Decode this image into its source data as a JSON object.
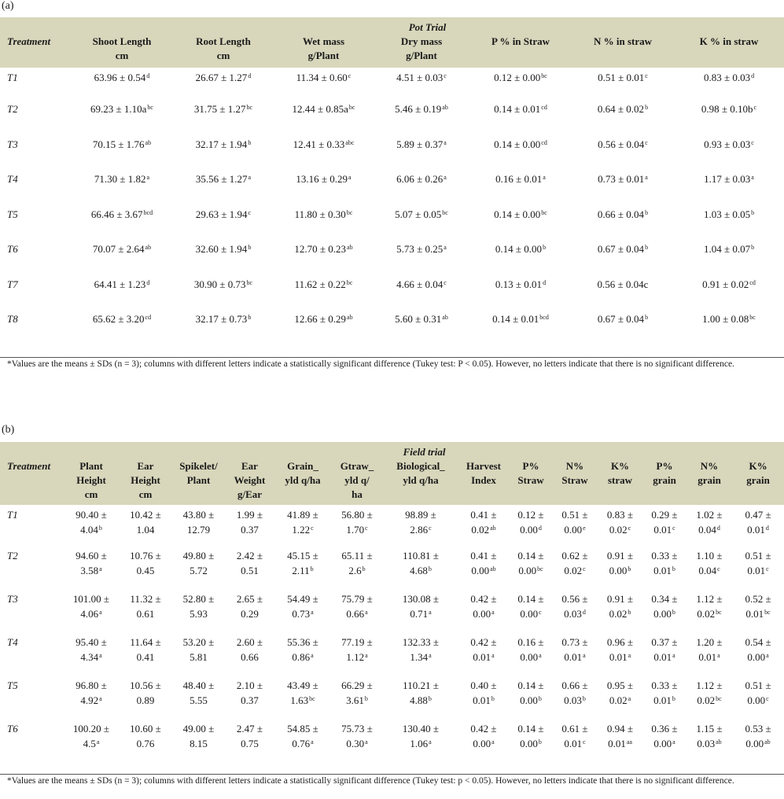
{
  "table_a": {
    "panel_label": "(a)",
    "title": "Pot Trial",
    "headers": [
      {
        "l1": "Treatment",
        "l2": ""
      },
      {
        "l1": "Shoot Length",
        "l2": "cm"
      },
      {
        "l1": "Root Length",
        "l2": "cm"
      },
      {
        "l1": "Wet mass",
        "l2": "g/Plant"
      },
      {
        "l1": "Dry mass",
        "l2": "g/Plant"
      },
      {
        "l1": "P % in Straw",
        "l2": ""
      },
      {
        "l1": "N % in straw",
        "l2": ""
      },
      {
        "l1": "K % in straw",
        "l2": ""
      }
    ],
    "rows": [
      {
        "treatment": "T1",
        "cells": [
          {
            "v": "63.96 ± 0.54",
            "s": "d"
          },
          {
            "v": "26.67 ± 1.27",
            "s": "d"
          },
          {
            "v": "11.34 ± 0.60",
            "s": "c"
          },
          {
            "v": "4.51 ± 0.03",
            "s": "c"
          },
          {
            "v": "0.12 ± 0.00",
            "s": "bc"
          },
          {
            "v": "0.51 ± 0.01",
            "s": "c"
          },
          {
            "v": "0.83 ± 0.03",
            "s": "d"
          }
        ]
      },
      {
        "treatment": "T2",
        "cells": [
          {
            "v": "69.23 ± 1.10a",
            "s": "bc"
          },
          {
            "v": "31.75 ± 1.27",
            "s": "bc"
          },
          {
            "v": "12.44 ± 0.85a",
            "s": "bc"
          },
          {
            "v": "5.46 ± 0.19",
            "s": "ab"
          },
          {
            "v": "0.14 ± 0.01",
            "s": "cd"
          },
          {
            "v": "0.64 ± 0.02",
            "s": "b"
          },
          {
            "v": "0.98 ± 0.10b",
            "s": "c"
          }
        ]
      },
      {
        "treatment": "T3",
        "cells": [
          {
            "v": "70.15 ± 1.76",
            "s": "ab"
          },
          {
            "v": "32.17 ± 1.94",
            "s": "b"
          },
          {
            "v": "12.41 ± 0.33",
            "s": "abc"
          },
          {
            "v": "5.89 ± 0.37",
            "s": "a"
          },
          {
            "v": "0.14 ± 0.00",
            "s": "cd"
          },
          {
            "v": "0.56 ± 0.04",
            "s": "c"
          },
          {
            "v": "0.93 ± 0.03",
            "s": "c"
          }
        ]
      },
      {
        "treatment": "T4",
        "cells": [
          {
            "v": "71.30 ± 1.82",
            "s": "a"
          },
          {
            "v": "35.56 ± 1.27",
            "s": "a"
          },
          {
            "v": "13.16 ± 0.29",
            "s": "a"
          },
          {
            "v": "6.06 ± 0.26",
            "s": "a"
          },
          {
            "v": "0.16 ± 0.01",
            "s": "a"
          },
          {
            "v": "0.73 ± 0.01",
            "s": "a"
          },
          {
            "v": "1.17 ± 0.03",
            "s": "a"
          }
        ]
      },
      {
        "treatment": "T5",
        "cells": [
          {
            "v": "66.46 ± 3.67",
            "s": "bcd"
          },
          {
            "v": "29.63 ± 1.94",
            "s": "c"
          },
          {
            "v": "11.80 ± 0.30",
            "s": "bc"
          },
          {
            "v": "5.07 ± 0.05",
            "s": "bc"
          },
          {
            "v": "0.14 ± 0.00",
            "s": "bc"
          },
          {
            "v": "0.66 ± 0.04",
            "s": "b"
          },
          {
            "v": "1.03 ± 0.05",
            "s": "b"
          }
        ]
      },
      {
        "treatment": "T6",
        "cells": [
          {
            "v": "70.07 ± 2.64",
            "s": "ab"
          },
          {
            "v": "32.60 ± 1.94",
            "s": "b"
          },
          {
            "v": "12.70 ± 0.23",
            "s": "ab"
          },
          {
            "v": "5.73 ± 0.25",
            "s": "a"
          },
          {
            "v": "0.14 ± 0.00",
            "s": "b"
          },
          {
            "v": "0.67 ± 0.04",
            "s": "b"
          },
          {
            "v": "1.04 ± 0.07",
            "s": "b"
          }
        ]
      },
      {
        "treatment": "T7",
        "cells": [
          {
            "v": "64.41 ± 1.23",
            "s": "d"
          },
          {
            "v": "30.90 ± 0.73",
            "s": "bc"
          },
          {
            "v": "11.62 ± 0.22",
            "s": "bc"
          },
          {
            "v": "4.66 ± 0.04",
            "s": "c"
          },
          {
            "v": "0.13 ± 0.01",
            "s": "d"
          },
          {
            "v": "0.56 ± 0.04c",
            "s": ""
          },
          {
            "v": "0.91 ± 0.02",
            "s": "cd"
          }
        ]
      },
      {
        "treatment": "T8",
        "cells": [
          {
            "v": "65.62 ± 3.20",
            "s": "cd"
          },
          {
            "v": "32.17 ± 0.73",
            "s": "b"
          },
          {
            "v": "12.66 ± 0.29",
            "s": "ab"
          },
          {
            "v": "5.60 ± 0.31",
            "s": "ab"
          },
          {
            "v": "0.14 ± 0.01",
            "s": "bcd"
          },
          {
            "v": "0.67 ± 0.04",
            "s": "b"
          },
          {
            "v": "1.00 ± 0.08",
            "s": "bc"
          }
        ]
      }
    ],
    "note": "*Values are the means ± SDs (n = 3); columns with different letters indicate a statistically significant difference (Tukey test: P < 0.05). However, no letters indicate that there is no significant difference."
  },
  "table_b": {
    "panel_label": "(b)",
    "title": "Field trial",
    "headers": [
      [
        "Treatment"
      ],
      [
        "Plant",
        "Height",
        "cm"
      ],
      [
        "Ear",
        "Height",
        "cm"
      ],
      [
        "Spikelet/",
        "Plant"
      ],
      [
        "Ear",
        "Weight",
        "g/Ear"
      ],
      [
        "Grain_",
        "yld q/ha"
      ],
      [
        "Gtraw_",
        "yld q/",
        "ha"
      ],
      [
        "Biological_",
        "yld q/ha"
      ],
      [
        "Harvest",
        "Index"
      ],
      [
        "P%",
        "Straw"
      ],
      [
        "N%",
        "Straw"
      ],
      [
        "K%",
        "straw"
      ],
      [
        "P%",
        "grain"
      ],
      [
        "N%",
        "grain"
      ],
      [
        "K%",
        "grain"
      ]
    ],
    "rows": [
      {
        "treatment": "T1",
        "cells": [
          [
            "90.40 ±",
            "4.04",
            "b"
          ],
          [
            "10.42 ±",
            "1.04",
            ""
          ],
          [
            "43.80 ±",
            "12.79",
            ""
          ],
          [
            "1.99 ±",
            "0.37",
            ""
          ],
          [
            "41.89 ±",
            "1.22",
            "c"
          ],
          [
            "56.80 ±",
            "1.70",
            "c"
          ],
          [
            "98.89 ±",
            "2.86",
            "c"
          ],
          [
            "0.41 ±",
            "0.02",
            "ab"
          ],
          [
            "0.12 ±",
            "0.00",
            "d"
          ],
          [
            "0.51 ±",
            "0.00",
            "e"
          ],
          [
            "0.83 ±",
            "0.02",
            "c"
          ],
          [
            "0.29 ±",
            "0.01",
            "c"
          ],
          [
            "1.02 ±",
            "0.04",
            "d"
          ],
          [
            "0.47 ±",
            "0.01",
            "d"
          ]
        ]
      },
      {
        "treatment": "T2",
        "cells": [
          [
            "94.60 ±",
            "3.58",
            "a"
          ],
          [
            "10.76 ±",
            "0.45",
            ""
          ],
          [
            "49.80 ±",
            "5.72",
            ""
          ],
          [
            "2.42 ±",
            "0.51",
            ""
          ],
          [
            "45.15 ±",
            "2.11",
            "b"
          ],
          [
            "65.11 ±",
            "2.6",
            "b"
          ],
          [
            "110.81 ±",
            "4.68",
            "b"
          ],
          [
            "0.41 ±",
            "0.00",
            "ab"
          ],
          [
            "0.14 ±",
            "0.00",
            "bc"
          ],
          [
            "0.62 ±",
            "0.02",
            "c"
          ],
          [
            "0.91 ±",
            "0.00",
            "b"
          ],
          [
            "0.33 ±",
            "0.01",
            "b"
          ],
          [
            "1.10 ±",
            "0.04",
            "c"
          ],
          [
            "0.51 ±",
            "0.01",
            "c"
          ]
        ]
      },
      {
        "treatment": "T3",
        "cells": [
          [
            "101.00 ±",
            "4.06",
            "a"
          ],
          [
            "11.32 ±",
            "0.61",
            ""
          ],
          [
            "52.80 ±",
            "5.93",
            ""
          ],
          [
            "2.65 ±",
            "0.29",
            ""
          ],
          [
            "54.49 ±",
            "0.73",
            "a"
          ],
          [
            "75.79 ±",
            "0.66",
            "a"
          ],
          [
            "130.08 ±",
            "0.71",
            "a"
          ],
          [
            "0.42 ±",
            "0.00",
            "a"
          ],
          [
            "0.14 ±",
            "0.00",
            "c"
          ],
          [
            "0.56 ±",
            "0.03",
            "d"
          ],
          [
            "0.91 ±",
            "0.02",
            "b"
          ],
          [
            "0.34 ±",
            "0.00",
            "b"
          ],
          [
            "1.12 ±",
            "0.02",
            "bc"
          ],
          [
            "0.52 ±",
            "0.01",
            "bc"
          ]
        ]
      },
      {
        "treatment": "T4",
        "cells": [
          [
            "95.40 ±",
            "4.34",
            "a"
          ],
          [
            "11.64 ±",
            "0.41",
            ""
          ],
          [
            "53.20 ±",
            "5.81",
            ""
          ],
          [
            "2.60 ±",
            "0.66",
            ""
          ],
          [
            "55.36 ±",
            "0.86",
            "a"
          ],
          [
            "77.19 ±",
            "1.12",
            "a"
          ],
          [
            "132.33 ±",
            "1.34",
            "a"
          ],
          [
            "0.42 ±",
            "0.01",
            "a"
          ],
          [
            "0.16 ±",
            "0.00",
            "a"
          ],
          [
            "0.73 ±",
            "0.01",
            "a"
          ],
          [
            "0.96 ±",
            "0.01",
            "a"
          ],
          [
            "0.37 ±",
            "0.01",
            "a"
          ],
          [
            "1.20 ±",
            "0.01",
            "a"
          ],
          [
            "0.54 ±",
            "0.00",
            "a"
          ]
        ]
      },
      {
        "treatment": "T5",
        "cells": [
          [
            "96.80 ±",
            "4.92",
            "a"
          ],
          [
            "10.56 ±",
            "0.89",
            ""
          ],
          [
            "48.40 ±",
            "5.55",
            ""
          ],
          [
            "2.10 ±",
            "0.37",
            ""
          ],
          [
            "43.49 ±",
            "1.63",
            "bc"
          ],
          [
            "66.29 ±",
            "3.61",
            "b"
          ],
          [
            "110.21 ±",
            "4.88",
            "b"
          ],
          [
            "0.40 ±",
            "0.01",
            "b"
          ],
          [
            "0.14 ±",
            "0.00",
            "b"
          ],
          [
            "0.66 ±",
            "0.03",
            "b"
          ],
          [
            "0.95 ±",
            "0.02",
            "a"
          ],
          [
            "0.33 ±",
            "0.01",
            "b"
          ],
          [
            "1.12 ±",
            "0.02",
            "bc"
          ],
          [
            "0.51 ±",
            "0.00",
            "c"
          ]
        ]
      },
      {
        "treatment": "T6",
        "cells": [
          [
            "100.20 ±",
            "4.5",
            "a"
          ],
          [
            "10.60 ±",
            "0.76",
            ""
          ],
          [
            "49.00 ±",
            "8.15",
            ""
          ],
          [
            "2.47 ±",
            "0.75",
            ""
          ],
          [
            "54.85 ±",
            "0.76",
            "a"
          ],
          [
            "75.73 ±",
            "0.30",
            "a"
          ],
          [
            "130.40 ±",
            "1.06",
            "a"
          ],
          [
            "0.42 ±",
            "0.00",
            "a"
          ],
          [
            "0.14 ±",
            "0.00",
            "b"
          ],
          [
            "0.61 ±",
            "0.01",
            "c"
          ],
          [
            "0.94 ±",
            "0.01",
            "aa"
          ],
          [
            "0.36 ±",
            "0.00",
            "a"
          ],
          [
            "1.15 ±",
            "0.03",
            "ab"
          ],
          [
            "0.53 ±",
            "0.00",
            "ab"
          ]
        ]
      }
    ],
    "note": "*Values are the means ± SDs (n = 3); columns with different letters indicate a statistically significant difference (Tukey test: p < 0.05). However, no letters indicate that there is no significant difference."
  }
}
